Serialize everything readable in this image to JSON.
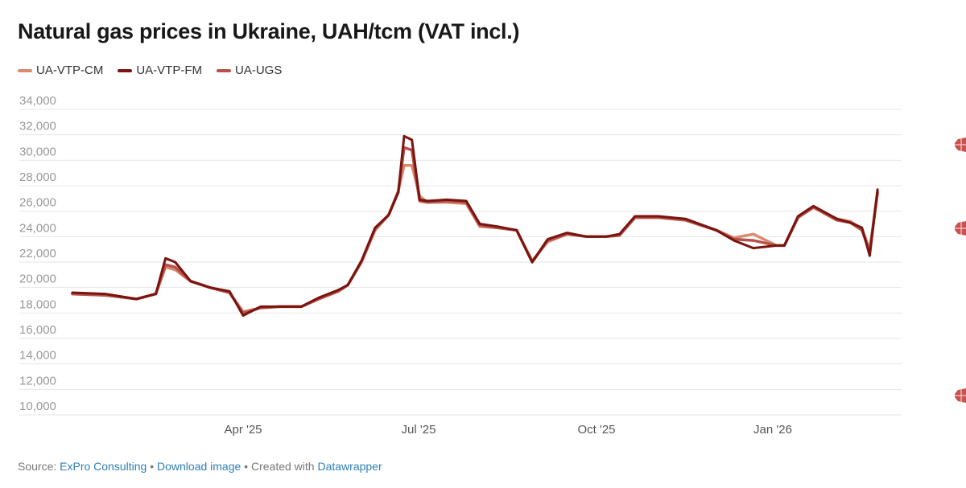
{
  "title": "Natural gas prices in Ukraine, UAH/tcm (VAT incl.)",
  "legend": [
    {
      "label": "UA-VTP-CM",
      "color": "#d98a6e"
    },
    {
      "label": "UA-VTP-FM",
      "color": "#7a1410"
    },
    {
      "label": "UA-UGS",
      "color": "#b5524a"
    }
  ],
  "footer": {
    "source_prefix": "Source: ",
    "source_link": "ExPro Consulting",
    "sep1": " • ",
    "download_link": "Download image",
    "sep2": " • Created with ",
    "datawrapper_link": "Datawrapper"
  },
  "chart_data": {
    "type": "line",
    "title": "Natural gas prices in Ukraine, UAH/tcm (VAT incl.)",
    "xlabel": "",
    "ylabel": "UAH/tcm",
    "ylim": [
      10000,
      34000
    ],
    "yticks": [
      "34,000",
      "32,000",
      "30,000",
      "28,000",
      "26,000",
      "24,000",
      "22,000",
      "20,000",
      "18,000",
      "16,000",
      "14,000",
      "12,000",
      "10,000"
    ],
    "xticks": [
      "Apr '25",
      "Jul '25",
      "Oct '25",
      "Jan '26"
    ],
    "grid": true,
    "legend_position": "top-left",
    "x": [
      "2025-01-03",
      "2025-01-20",
      "2025-02-05",
      "2025-02-15",
      "2025-02-20",
      "2025-02-25",
      "2025-03-05",
      "2025-03-15",
      "2025-03-25",
      "2025-04-01",
      "2025-04-10",
      "2025-04-20",
      "2025-05-01",
      "2025-05-10",
      "2025-05-20",
      "2025-05-25",
      "2025-06-01",
      "2025-06-08",
      "2025-06-15",
      "2025-06-20",
      "2025-06-23",
      "2025-06-27",
      "2025-07-01",
      "2025-07-05",
      "2025-07-15",
      "2025-07-25",
      "2025-08-01",
      "2025-08-10",
      "2025-08-20",
      "2025-08-28",
      "2025-09-05",
      "2025-09-15",
      "2025-09-25",
      "2025-10-05",
      "2025-10-12",
      "2025-10-20",
      "2025-11-01",
      "2025-11-15",
      "2025-12-01",
      "2025-12-10",
      "2025-12-20",
      "2026-01-01",
      "2026-01-05",
      "2026-01-12",
      "2026-01-20",
      "2026-02-01",
      "2026-02-08",
      "2026-02-14",
      "2026-02-18",
      "2026-02-22"
    ],
    "series": [
      {
        "name": "UA-VTP-CM",
        "color": "#d98a6e",
        "values": [
          19500,
          19400,
          19100,
          19500,
          21600,
          21400,
          20500,
          20000,
          19600,
          18100,
          18400,
          18500,
          18500,
          19100,
          19700,
          20200,
          22000,
          24500,
          25700,
          27600,
          29600,
          29600,
          27200,
          26700,
          26700,
          26600,
          24800,
          24700,
          24500,
          22100,
          23600,
          24200,
          24000,
          24000,
          24100,
          25500,
          25500,
          25300,
          24500,
          23900,
          24200,
          23300,
          23300,
          25500,
          26300,
          25400,
          25200,
          24600,
          23000,
          27400
        ]
      },
      {
        "name": "UA-VTP-FM",
        "color": "#7a1410",
        "values": [
          19600,
          19500,
          19100,
          19500,
          22300,
          22000,
          20500,
          20000,
          19700,
          17800,
          18500,
          18500,
          18500,
          19200,
          19800,
          20200,
          22100,
          24700,
          25700,
          27500,
          31900,
          31600,
          26900,
          26800,
          26900,
          26800,
          25000,
          24800,
          24500,
          22000,
          23800,
          24300,
          24000,
          24000,
          24200,
          25600,
          25600,
          25400,
          24500,
          23700,
          23100,
          23300,
          23300,
          25600,
          26400,
          25400,
          25100,
          24700,
          22500,
          27700
        ]
      },
      {
        "name": "UA-UGS",
        "color": "#b5524a",
        "values": [
          19500,
          19400,
          19100,
          19500,
          21800,
          21600,
          20500,
          20000,
          19600,
          18000,
          18400,
          18500,
          18500,
          19100,
          19700,
          20200,
          22000,
          24600,
          25700,
          27500,
          31000,
          30800,
          26800,
          26700,
          26800,
          26700,
          24900,
          24700,
          24500,
          22000,
          23700,
          24200,
          24000,
          24000,
          24100,
          25500,
          25500,
          25300,
          24500,
          23800,
          23700,
          23300,
          23300,
          25500,
          26300,
          25300,
          25100,
          24500,
          22800,
          27500
        ]
      }
    ]
  },
  "icons": {
    "edge_icon_name": "edge-badge-icon"
  }
}
